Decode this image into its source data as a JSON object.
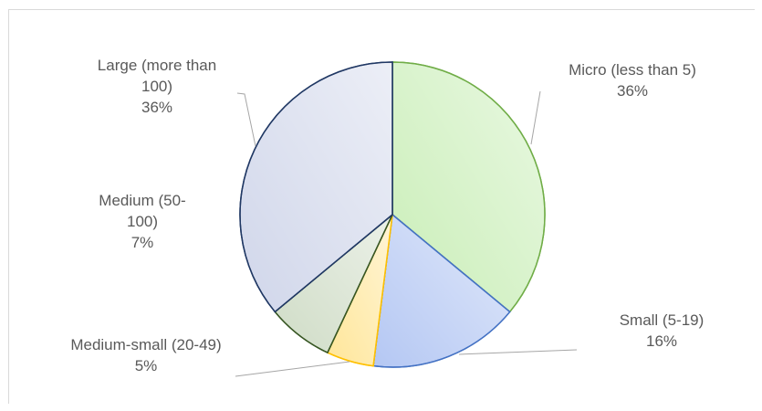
{
  "chart_data": {
    "type": "pie",
    "slices": [
      {
        "label_lines": [
          "Micro (less than 5)"
        ],
        "value": 36,
        "value_label": "36%",
        "color": "#c9eeb7",
        "stroke": "#70ad47"
      },
      {
        "label_lines": [
          "Small (5-19)"
        ],
        "value": 16,
        "value_label": "16%",
        "color": "#b4c7f3",
        "stroke": "#4472c4"
      },
      {
        "label_lines": [
          "Medium-small (20-49)"
        ],
        "value": 5,
        "value_label": "5%",
        "color": "#ffe699",
        "stroke": "#ffc000"
      },
      {
        "label_lines": [
          "Medium (50-",
          "100)"
        ],
        "value": 7,
        "value_label": "7%",
        "color": "#cfdcc6",
        "stroke": "#375623"
      },
      {
        "label_lines": [
          "Large (more than",
          "100)"
        ],
        "value": 36,
        "value_label": "36%",
        "color": "#d0d6ea",
        "stroke": "#203864"
      }
    ],
    "start_angle_deg": 0,
    "direction": "clockwise",
    "legend": "none",
    "data_labels": "category and percentage, outside with leader lines"
  }
}
